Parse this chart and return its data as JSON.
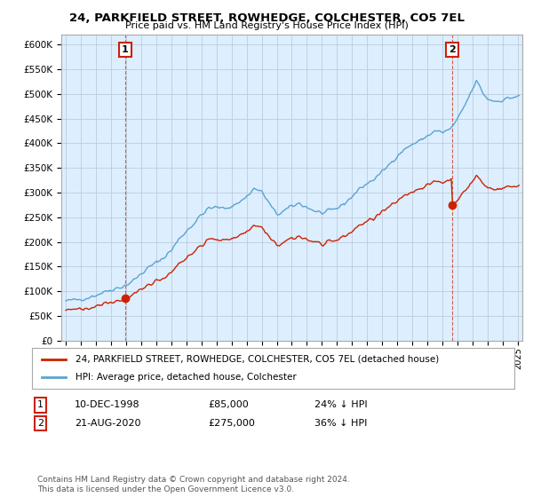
{
  "title": "24, PARKFIELD STREET, ROWHEDGE, COLCHESTER, CO5 7EL",
  "subtitle": "Price paid vs. HM Land Registry's House Price Index (HPI)",
  "legend_line1": "24, PARKFIELD STREET, ROWHEDGE, COLCHESTER, CO5 7EL (detached house)",
  "legend_line2": "HPI: Average price, detached house, Colchester",
  "annotation1_date": "10-DEC-1998",
  "annotation1_price": "£85,000",
  "annotation1_hpi": "24% ↓ HPI",
  "annotation2_date": "21-AUG-2020",
  "annotation2_price": "£275,000",
  "annotation2_hpi": "36% ↓ HPI",
  "footer": "Contains HM Land Registry data © Crown copyright and database right 2024.\nThis data is licensed under the Open Government Licence v3.0.",
  "hpi_color": "#5ba3d0",
  "price_color": "#cc2200",
  "chart_bg": "#ddeeff",
  "ylim": [
    0,
    620000
  ],
  "xlim_start": 1994.7,
  "xlim_end": 2025.3,
  "sale1_x": 1998.94,
  "sale1_y": 85000,
  "sale2_x": 2020.64,
  "sale2_y": 275000,
  "bg_color": "#ffffff",
  "grid_color": "#bbccdd"
}
